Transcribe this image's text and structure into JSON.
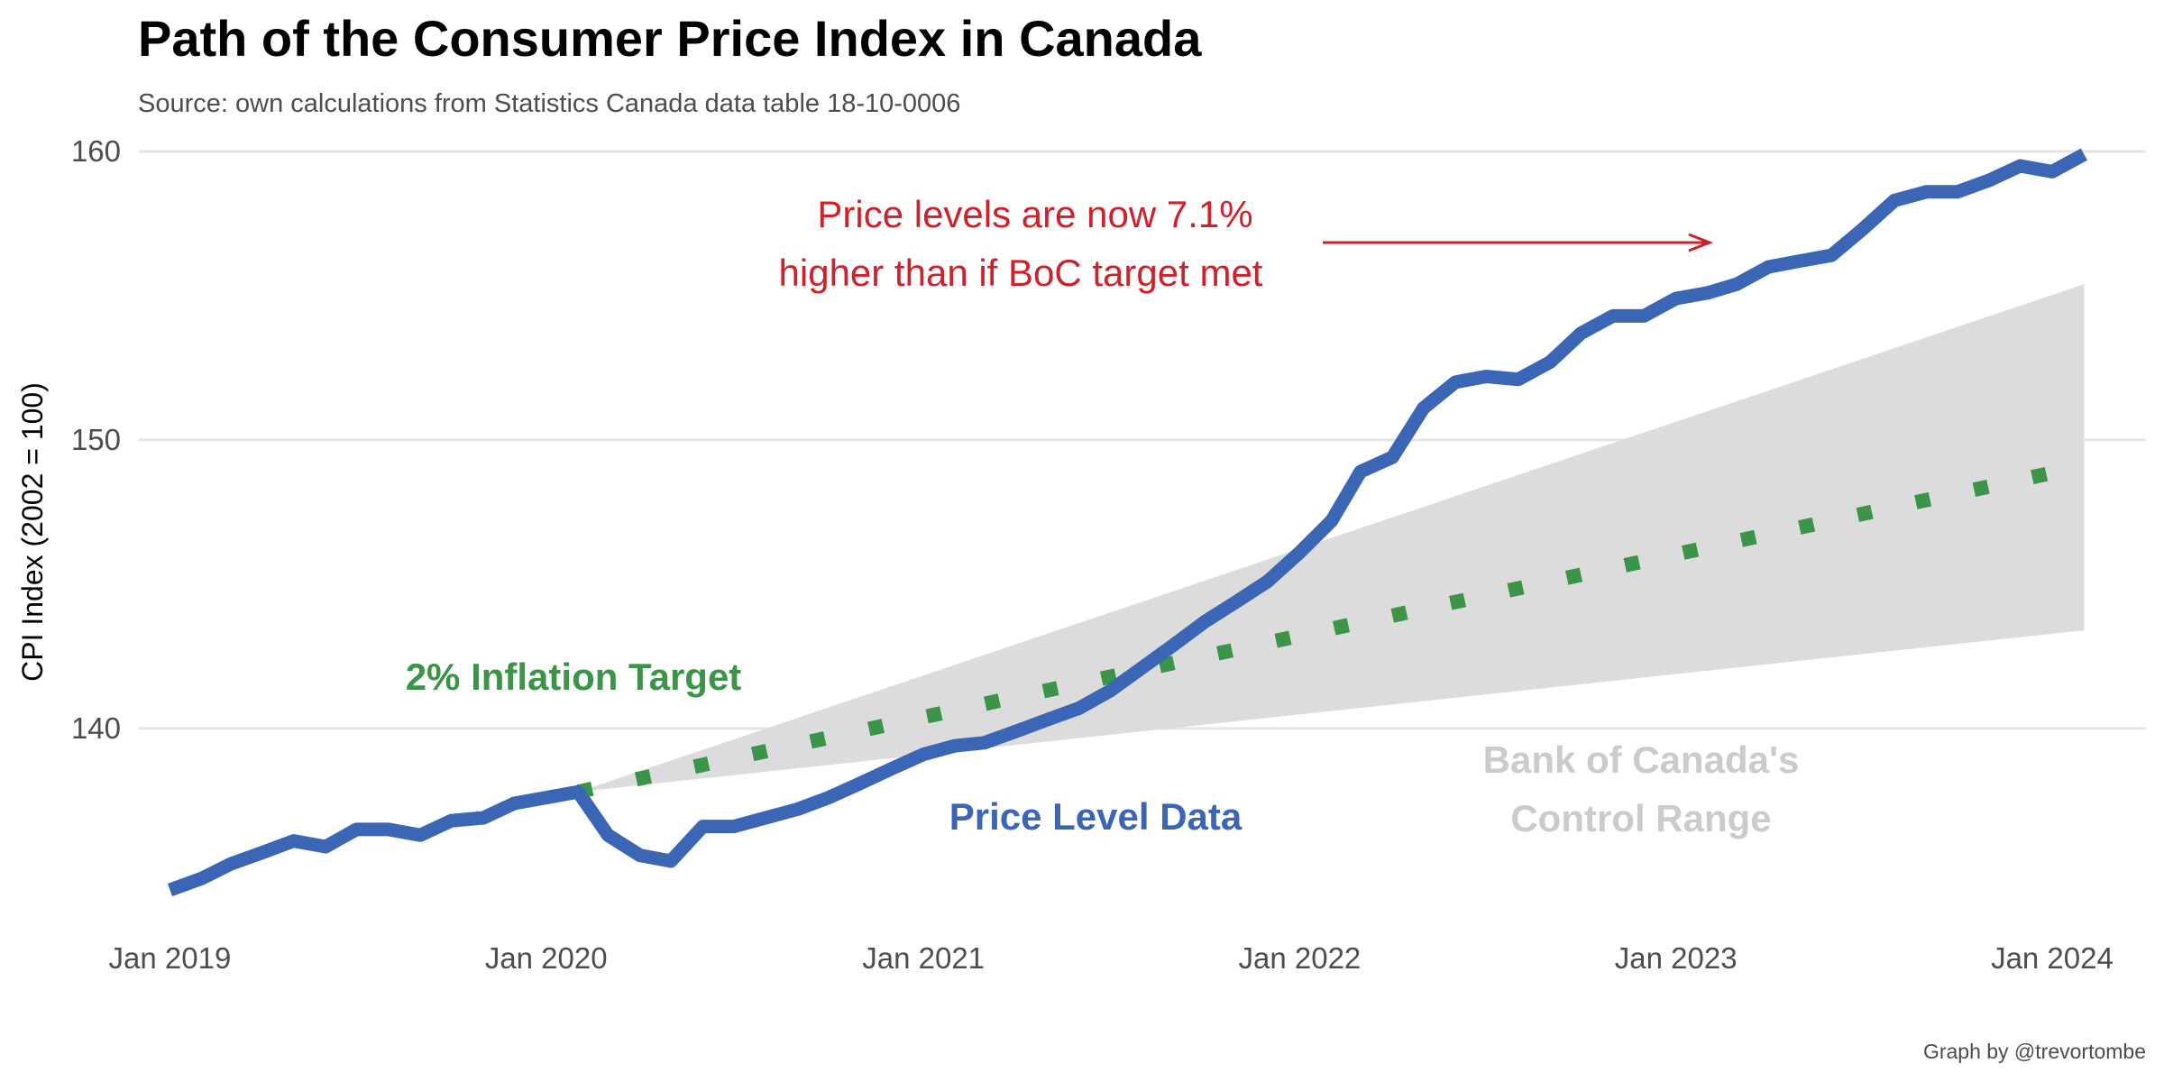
{
  "chart_data": {
    "type": "line",
    "title": "Path of the Consumer Price Index in Canada",
    "subtitle": "Source: own calculations from Statistics Canada data table 18-10-0006",
    "caption": "Graph by @trevortombe",
    "ylabel": "CPI Index (2002 = 100)",
    "xlabel": "",
    "xlim": [
      "2018-12-01",
      "2024-04-01"
    ],
    "ylim": [
      132.9,
      161.5
    ],
    "x_ticks": [
      {
        "date": "2019-01-01",
        "label": "Jan 2019"
      },
      {
        "date": "2020-01-01",
        "label": "Jan 2020"
      },
      {
        "date": "2021-01-01",
        "label": "Jan 2021"
      },
      {
        "date": "2022-01-01",
        "label": "Jan 2022"
      },
      {
        "date": "2023-01-01",
        "label": "Jan 2023"
      },
      {
        "date": "2024-01-01",
        "label": "Jan 2024"
      }
    ],
    "y_ticks": [
      140,
      150,
      160
    ],
    "grid": "horizontal major",
    "legend": "none (direct labels)",
    "colors": {
      "price_level": "#3A66B5",
      "target": "#3C9448",
      "control_range": "#DCDCDC",
      "range_label": "#CBCBCB",
      "annotation": "#D0202A"
    },
    "series": [
      {
        "name": "Price Level Data",
        "style": "solid",
        "x": [
          "2019-01-01",
          "2019-02-01",
          "2019-03-01",
          "2019-04-01",
          "2019-05-01",
          "2019-06-01",
          "2019-07-01",
          "2019-08-01",
          "2019-09-01",
          "2019-10-01",
          "2019-11-01",
          "2019-12-01",
          "2020-01-01",
          "2020-02-01",
          "2020-03-01",
          "2020-04-01",
          "2020-05-01",
          "2020-06-01",
          "2020-07-01",
          "2020-08-01",
          "2020-09-01",
          "2020-10-01",
          "2020-11-01",
          "2020-12-01",
          "2021-01-01",
          "2021-02-01",
          "2021-03-01",
          "2021-04-01",
          "2021-05-01",
          "2021-06-01",
          "2021-07-01",
          "2021-08-01",
          "2021-09-01",
          "2021-10-01",
          "2021-11-01",
          "2021-12-01",
          "2022-01-01",
          "2022-02-01",
          "2022-03-01",
          "2022-04-01",
          "2022-05-01",
          "2022-06-01",
          "2022-07-01",
          "2022-08-01",
          "2022-09-01",
          "2022-10-01",
          "2022-11-01",
          "2022-12-01",
          "2023-01-01",
          "2023-02-01",
          "2023-03-01",
          "2023-04-01",
          "2023-05-01",
          "2023-06-01",
          "2023-07-01",
          "2023-08-01",
          "2023-09-01",
          "2023-10-01",
          "2023-11-01",
          "2023-12-01",
          "2024-01-01",
          "2024-02-01"
        ],
        "values": [
          134.4,
          134.8,
          135.3,
          135.7,
          136.1,
          135.9,
          136.5,
          136.5,
          136.3,
          136.8,
          136.9,
          137.4,
          137.6,
          137.8,
          136.3,
          135.6,
          135.4,
          136.6,
          136.6,
          136.9,
          137.2,
          137.6,
          138.1,
          138.6,
          139.1,
          139.4,
          139.5,
          139.9,
          140.3,
          140.7,
          141.3,
          142.1,
          142.9,
          143.7,
          144.4,
          145.1,
          146.1,
          147.2,
          148.9,
          149.4,
          151.1,
          152.0,
          152.2,
          152.1,
          152.7,
          153.7,
          154.3,
          154.3,
          154.9,
          155.1,
          155.4,
          156.0,
          156.2,
          156.4,
          157.3,
          158.3,
          158.6,
          158.6,
          159.0,
          159.5,
          159.3,
          159.9
        ]
      },
      {
        "name": "2% Inflation Target",
        "style": "dotted",
        "x": [
          "2020-02-01",
          "2024-02-01"
        ],
        "values": [
          137.8,
          149.1
        ]
      }
    ],
    "bands": [
      {
        "name": "Bank of Canada's Control Range",
        "x": [
          "2020-02-01",
          "2024-02-01"
        ],
        "lower": [
          137.8,
          143.4
        ],
        "upper": [
          137.8,
          155.4
        ]
      }
    ],
    "annotations": {
      "price_label": "Price Level Data",
      "target_label": "2% Inflation Target",
      "range_label_line1": "Bank of Canada's",
      "range_label_line2": "Control Range",
      "note_line1": "Price levels are now 7.1%",
      "note_line2": "higher than if BoC target met"
    }
  }
}
